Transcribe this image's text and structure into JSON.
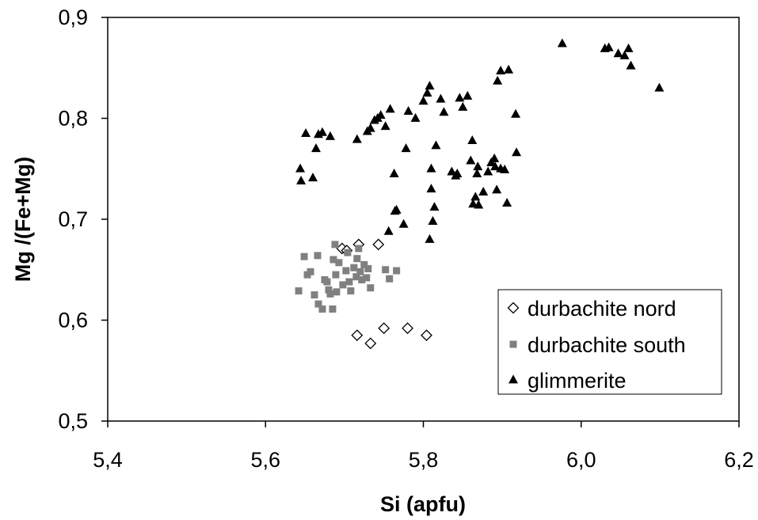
{
  "chart_data": {
    "type": "scatter",
    "title": "",
    "xlabel": "Si (apfu)",
    "ylabel": "Mg /(Fe+Mg)",
    "xlim": [
      5.4,
      6.2
    ],
    "ylim": [
      0.5,
      0.9
    ],
    "x_ticks": [
      5.4,
      5.6,
      5.8,
      6.0,
      6.2
    ],
    "x_tick_labels": [
      "5,4",
      "5,6",
      "5,8",
      "6,0",
      "6,2"
    ],
    "y_ticks": [
      0.5,
      0.6,
      0.7,
      0.8,
      0.9
    ],
    "y_tick_labels": [
      "0,5",
      "0,6",
      "0,7",
      "0,8",
      "0,9"
    ],
    "grid": false,
    "legend_position": "bottom-right",
    "series": [
      {
        "name": "durbachite nord",
        "marker": "diamond-open",
        "color": "#000000",
        "points": [
          [
            5.697,
            0.671
          ],
          [
            5.703,
            0.669
          ],
          [
            5.718,
            0.675
          ],
          [
            5.743,
            0.675
          ],
          [
            5.716,
            0.585
          ],
          [
            5.733,
            0.577
          ],
          [
            5.75,
            0.592
          ],
          [
            5.78,
            0.592
          ],
          [
            5.804,
            0.585
          ]
        ]
      },
      {
        "name": "durbachite south",
        "marker": "square",
        "color": "#808080",
        "points": [
          [
            5.642,
            0.629
          ],
          [
            5.649,
            0.663
          ],
          [
            5.653,
            0.645
          ],
          [
            5.657,
            0.648
          ],
          [
            5.662,
            0.625
          ],
          [
            5.666,
            0.664
          ],
          [
            5.667,
            0.616
          ],
          [
            5.672,
            0.611
          ],
          [
            5.675,
            0.64
          ],
          [
            5.678,
            0.638
          ],
          [
            5.68,
            0.63
          ],
          [
            5.682,
            0.626
          ],
          [
            5.685,
            0.611
          ],
          [
            5.686,
            0.66
          ],
          [
            5.688,
            0.675
          ],
          [
            5.689,
            0.645
          ],
          [
            5.69,
            0.628
          ],
          [
            5.693,
            0.657
          ],
          [
            5.698,
            0.635
          ],
          [
            5.702,
            0.649
          ],
          [
            5.704,
            0.667
          ],
          [
            5.706,
            0.638
          ],
          [
            5.708,
            0.629
          ],
          [
            5.712,
            0.652
          ],
          [
            5.715,
            0.643
          ],
          [
            5.716,
            0.661
          ],
          [
            5.718,
            0.671
          ],
          [
            5.72,
            0.648
          ],
          [
            5.722,
            0.64
          ],
          [
            5.725,
            0.655
          ],
          [
            5.728,
            0.642
          ],
          [
            5.73,
            0.651
          ],
          [
            5.733,
            0.632
          ],
          [
            5.752,
            0.65
          ],
          [
            5.757,
            0.641
          ],
          [
            5.766,
            0.649
          ]
        ]
      },
      {
        "name": "glimmerite",
        "marker": "triangle",
        "color": "#000000",
        "points": [
          [
            5.644,
            0.75
          ],
          [
            5.645,
            0.738
          ],
          [
            5.651,
            0.785
          ],
          [
            5.66,
            0.741
          ],
          [
            5.664,
            0.77
          ],
          [
            5.667,
            0.784
          ],
          [
            5.672,
            0.786
          ],
          [
            5.682,
            0.782
          ],
          [
            5.716,
            0.779
          ],
          [
            5.729,
            0.787
          ],
          [
            5.733,
            0.79
          ],
          [
            5.738,
            0.798
          ],
          [
            5.742,
            0.8
          ],
          [
            5.746,
            0.803
          ],
          [
            5.752,
            0.792
          ],
          [
            5.756,
            0.688
          ],
          [
            5.758,
            0.809
          ],
          [
            5.763,
            0.745
          ],
          [
            5.764,
            0.708
          ],
          [
            5.766,
            0.709
          ],
          [
            5.775,
            0.695
          ],
          [
            5.778,
            0.77
          ],
          [
            5.781,
            0.807
          ],
          [
            5.79,
            0.8
          ],
          [
            5.8,
            0.817
          ],
          [
            5.805,
            0.825
          ],
          [
            5.808,
            0.832
          ],
          [
            5.808,
            0.68
          ],
          [
            5.81,
            0.73
          ],
          [
            5.81,
            0.75
          ],
          [
            5.812,
            0.698
          ],
          [
            5.814,
            0.712
          ],
          [
            5.816,
            0.773
          ],
          [
            5.822,
            0.819
          ],
          [
            5.826,
            0.806
          ],
          [
            5.836,
            0.747
          ],
          [
            5.841,
            0.743
          ],
          [
            5.843,
            0.745
          ],
          [
            5.846,
            0.82
          ],
          [
            5.85,
            0.811
          ],
          [
            5.856,
            0.822
          ],
          [
            5.86,
            0.758
          ],
          [
            5.862,
            0.778
          ],
          [
            5.863,
            0.715
          ],
          [
            5.866,
            0.722
          ],
          [
            5.868,
            0.745
          ],
          [
            5.869,
            0.752
          ],
          [
            5.87,
            0.714
          ],
          [
            5.876,
            0.727
          ],
          [
            5.882,
            0.747
          ],
          [
            5.886,
            0.756
          ],
          [
            5.89,
            0.76
          ],
          [
            5.891,
            0.752
          ],
          [
            5.893,
            0.729
          ],
          [
            5.894,
            0.837
          ],
          [
            5.898,
            0.847
          ],
          [
            5.898,
            0.75
          ],
          [
            5.903,
            0.749
          ],
          [
            5.906,
            0.716
          ],
          [
            5.908,
            0.848
          ],
          [
            5.917,
            0.804
          ],
          [
            5.918,
            0.766
          ],
          [
            5.976,
            0.874
          ],
          [
            6.03,
            0.869
          ],
          [
            6.035,
            0.87
          ],
          [
            6.047,
            0.864
          ],
          [
            6.055,
            0.862
          ],
          [
            6.06,
            0.869
          ],
          [
            6.063,
            0.852
          ],
          [
            6.099,
            0.83
          ]
        ]
      }
    ]
  }
}
